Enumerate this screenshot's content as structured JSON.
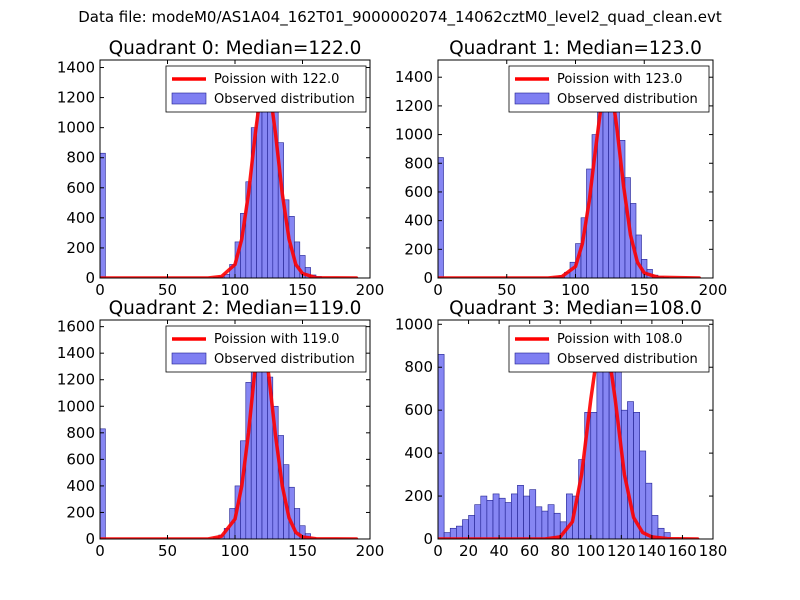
{
  "figure_title": "Data file: modeM0/AS1A04_162T01_9000002074_14062cztM0_level2_quad_clean.evt",
  "colors": {
    "fit_line": "#ff0000",
    "bar_fill": "#7f7ff2",
    "bar_edge": "#202090",
    "axes": "#000000"
  },
  "chart_data": [
    {
      "type": "bar",
      "title": "Quadrant 0: Median=122.0",
      "bin_width": 4,
      "xlim": [
        0,
        200
      ],
      "ylim": [
        0,
        1450
      ],
      "xticks": [
        "0",
        "50",
        "100",
        "150",
        "200"
      ],
      "yticks": [
        "0",
        "200",
        "400",
        "600",
        "800",
        "1000",
        "1200",
        "1400"
      ],
      "xtick_values": [
        0,
        50,
        100,
        150,
        200
      ],
      "ytick_values": [
        0,
        200,
        400,
        600,
        800,
        1000,
        1200,
        1400
      ],
      "bins": [
        [
          0,
          830
        ],
        [
          84,
          5
        ],
        [
          88,
          10
        ],
        [
          92,
          25
        ],
        [
          96,
          90
        ],
        [
          100,
          240
        ],
        [
          104,
          430
        ],
        [
          108,
          640
        ],
        [
          112,
          1000
        ],
        [
          116,
          1220
        ],
        [
          120,
          1340
        ],
        [
          124,
          1380
        ],
        [
          128,
          1210
        ],
        [
          132,
          900
        ],
        [
          136,
          520
        ],
        [
          140,
          410
        ],
        [
          144,
          240
        ],
        [
          148,
          150
        ],
        [
          152,
          70
        ],
        [
          156,
          20
        ],
        [
          160,
          10
        ]
      ],
      "fit_points": [
        [
          0,
          0
        ],
        [
          80,
          0
        ],
        [
          90,
          10
        ],
        [
          100,
          90
        ],
        [
          105,
          260
        ],
        [
          110,
          560
        ],
        [
          115,
          960
        ],
        [
          120,
          1300
        ],
        [
          122,
          1395
        ],
        [
          125,
          1300
        ],
        [
          130,
          960
        ],
        [
          135,
          560
        ],
        [
          140,
          260
        ],
        [
          145,
          90
        ],
        [
          150,
          30
        ],
        [
          160,
          2
        ],
        [
          190,
          0
        ]
      ],
      "legend": {
        "line_label": "Poission with 122.0",
        "bar_label": "Observed distribution",
        "loc": "upper right"
      }
    },
    {
      "type": "bar",
      "title": "Quadrant 1: Median=123.0",
      "bin_width": 4,
      "xlim": [
        0,
        200
      ],
      "ylim": [
        0,
        1520
      ],
      "xticks": [
        "0",
        "50",
        "100",
        "150",
        "200"
      ],
      "yticks": [
        "0",
        "200",
        "400",
        "600",
        "800",
        "1000",
        "1200",
        "1400"
      ],
      "xtick_values": [
        0,
        50,
        100,
        150,
        200
      ],
      "ytick_values": [
        0,
        200,
        400,
        600,
        800,
        1000,
        1200,
        1400
      ],
      "bins": [
        [
          0,
          840
        ],
        [
          84,
          8
        ],
        [
          88,
          15
        ],
        [
          92,
          40
        ],
        [
          96,
          110
        ],
        [
          100,
          240
        ],
        [
          104,
          420
        ],
        [
          108,
          760
        ],
        [
          112,
          1000
        ],
        [
          116,
          1260
        ],
        [
          120,
          1420
        ],
        [
          124,
          1330
        ],
        [
          128,
          1180
        ],
        [
          132,
          960
        ],
        [
          136,
          700
        ],
        [
          140,
          520
        ],
        [
          144,
          300
        ],
        [
          148,
          130
        ],
        [
          152,
          60
        ],
        [
          156,
          20
        ],
        [
          160,
          10
        ],
        [
          164,
          5
        ]
      ],
      "fit_points": [
        [
          0,
          0
        ],
        [
          80,
          0
        ],
        [
          90,
          10
        ],
        [
          100,
          80
        ],
        [
          105,
          240
        ],
        [
          110,
          540
        ],
        [
          115,
          930
        ],
        [
          120,
          1300
        ],
        [
          123,
          1420
        ],
        [
          126,
          1330
        ],
        [
          130,
          1050
        ],
        [
          135,
          640
        ],
        [
          140,
          300
        ],
        [
          145,
          110
        ],
        [
          150,
          35
        ],
        [
          160,
          5
        ],
        [
          190,
          0
        ]
      ],
      "legend": {
        "line_label": "Poission with 123.0",
        "bar_label": "Observed distribution",
        "loc": "upper right"
      }
    },
    {
      "type": "bar",
      "title": "Quadrant 2: Median=119.0",
      "bin_width": 4,
      "xlim": [
        0,
        200
      ],
      "ylim": [
        0,
        1650
      ],
      "xticks": [
        "0",
        "50",
        "100",
        "150",
        "200"
      ],
      "yticks": [
        "0",
        "200",
        "400",
        "600",
        "800",
        "1000",
        "1200",
        "1400",
        "1600"
      ],
      "xtick_values": [
        0,
        50,
        100,
        150,
        200
      ],
      "ytick_values": [
        0,
        200,
        400,
        600,
        800,
        1000,
        1200,
        1400,
        1600
      ],
      "bins": [
        [
          0,
          830
        ],
        [
          84,
          10
        ],
        [
          88,
          30
        ],
        [
          92,
          80
        ],
        [
          96,
          230
        ],
        [
          100,
          400
        ],
        [
          104,
          740
        ],
        [
          108,
          1180
        ],
        [
          112,
          1380
        ],
        [
          116,
          1500
        ],
        [
          120,
          1540
        ],
        [
          124,
          1220
        ],
        [
          128,
          1000
        ],
        [
          132,
          780
        ],
        [
          136,
          560
        ],
        [
          140,
          390
        ],
        [
          144,
          230
        ],
        [
          148,
          100
        ],
        [
          152,
          40
        ],
        [
          156,
          10
        ]
      ],
      "fit_points": [
        [
          0,
          0
        ],
        [
          80,
          0
        ],
        [
          90,
          20
        ],
        [
          100,
          150
        ],
        [
          105,
          400
        ],
        [
          110,
          800
        ],
        [
          115,
          1300
        ],
        [
          119,
          1540
        ],
        [
          122,
          1460
        ],
        [
          125,
          1230
        ],
        [
          130,
          780
        ],
        [
          135,
          400
        ],
        [
          140,
          160
        ],
        [
          145,
          50
        ],
        [
          150,
          15
        ],
        [
          160,
          2
        ],
        [
          190,
          0
        ]
      ],
      "legend": {
        "line_label": "Poission with 119.0",
        "bar_label": "Observed distribution",
        "loc": "upper right"
      }
    },
    {
      "type": "bar",
      "title": "Quadrant 3: Median=108.0",
      "bin_width": 4,
      "xlim": [
        0,
        180
      ],
      "ylim": [
        0,
        1020
      ],
      "xticks": [
        "0",
        "20",
        "40",
        "60",
        "80",
        "100",
        "120",
        "140",
        "160",
        "180"
      ],
      "yticks": [
        "0",
        "200",
        "400",
        "600",
        "800",
        "1000"
      ],
      "xtick_values": [
        0,
        20,
        40,
        60,
        80,
        100,
        120,
        140,
        160,
        180
      ],
      "ytick_values": [
        0,
        200,
        400,
        600,
        800,
        1000
      ],
      "bins": [
        [
          0,
          860
        ],
        [
          4,
          30
        ],
        [
          8,
          50
        ],
        [
          12,
          60
        ],
        [
          16,
          90
        ],
        [
          20,
          110
        ],
        [
          24,
          160
        ],
        [
          28,
          200
        ],
        [
          32,
          180
        ],
        [
          36,
          210
        ],
        [
          40,
          190
        ],
        [
          44,
          170
        ],
        [
          48,
          210
        ],
        [
          52,
          250
        ],
        [
          56,
          200
        ],
        [
          60,
          230
        ],
        [
          64,
          150
        ],
        [
          68,
          130
        ],
        [
          72,
          160
        ],
        [
          76,
          120
        ],
        [
          80,
          80
        ],
        [
          84,
          210
        ],
        [
          88,
          200
        ],
        [
          92,
          370
        ],
        [
          96,
          590
        ],
        [
          100,
          590
        ],
        [
          104,
          840
        ],
        [
          108,
          960
        ],
        [
          112,
          970
        ],
        [
          116,
          800
        ],
        [
          120,
          600
        ],
        [
          124,
          640
        ],
        [
          128,
          590
        ],
        [
          132,
          410
        ],
        [
          136,
          260
        ],
        [
          140,
          110
        ],
        [
          144,
          50
        ],
        [
          148,
          30
        ]
      ],
      "fit_points": [
        [
          0,
          0
        ],
        [
          70,
          0
        ],
        [
          80,
          10
        ],
        [
          88,
          80
        ],
        [
          94,
          300
        ],
        [
          100,
          650
        ],
        [
          105,
          900
        ],
        [
          108,
          970
        ],
        [
          111,
          900
        ],
        [
          116,
          650
        ],
        [
          122,
          300
        ],
        [
          128,
          100
        ],
        [
          134,
          30
        ],
        [
          140,
          10
        ],
        [
          150,
          2
        ],
        [
          170,
          0
        ]
      ],
      "legend": {
        "line_label": "Poission with 108.0",
        "bar_label": "Observed distribution",
        "loc": "upper right"
      }
    }
  ]
}
